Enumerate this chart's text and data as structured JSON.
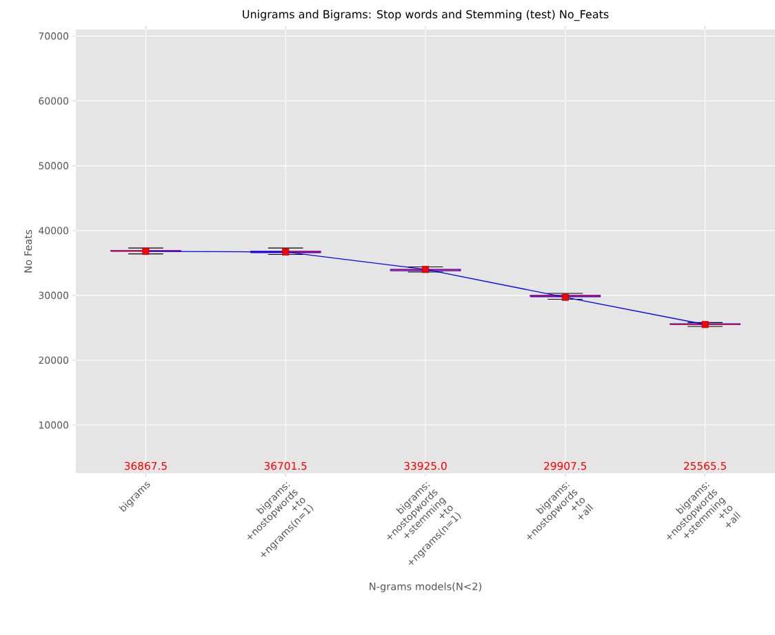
{
  "chart_data": {
    "type": "box",
    "title": "Unigrams and Bigrams: Stop words and Stemming (test) No_Feats",
    "xlabel": "N-grams models(N<2)",
    "ylabel": "No Feats",
    "categories": [
      "bigrams",
      "bigrams:\n+nostopwords\n+to\n+ngrams(n=1)",
      "bigrams:\n+nostopwords\n+stemming\n+to\n+ngrams(n=1)",
      "bigrams:\n+nostopwords\n+to\n+all",
      "bigrams:\n+nostopwords\n+stemming\n+to\n+all"
    ],
    "series": [
      {
        "color": "#0000ff",
        "boxes": [
          {
            "low": 36400,
            "q1": 36800,
            "median": 36867.5,
            "q3": 36900,
            "high": 37300
          },
          {
            "low": 36300,
            "q1": 36600,
            "median": 36701.5,
            "q3": 36800,
            "high": 37300
          },
          {
            "low": 33600,
            "q1": 33800,
            "median": 33925.0,
            "q3": 34000,
            "high": 34400
          },
          {
            "low": 29400,
            "q1": 29800,
            "median": 29907.5,
            "q3": 30000,
            "high": 30300
          },
          {
            "low": 25200,
            "q1": 25500,
            "median": 25565.5,
            "q3": 25600,
            "high": 25800
          }
        ]
      },
      {
        "type": "line",
        "color": "#0000ff",
        "marker": "square",
        "values": [
          36800,
          36700,
          34000,
          29700,
          25500
        ]
      }
    ],
    "annotations": [
      "36867.5",
      "36701.5",
      "33925.0",
      "29907.5",
      "25565.5"
    ],
    "ylim": [
      2570,
      71000
    ],
    "yticks": [
      10000,
      20000,
      30000,
      40000,
      50000,
      60000,
      70000
    ],
    "grid": true
  }
}
